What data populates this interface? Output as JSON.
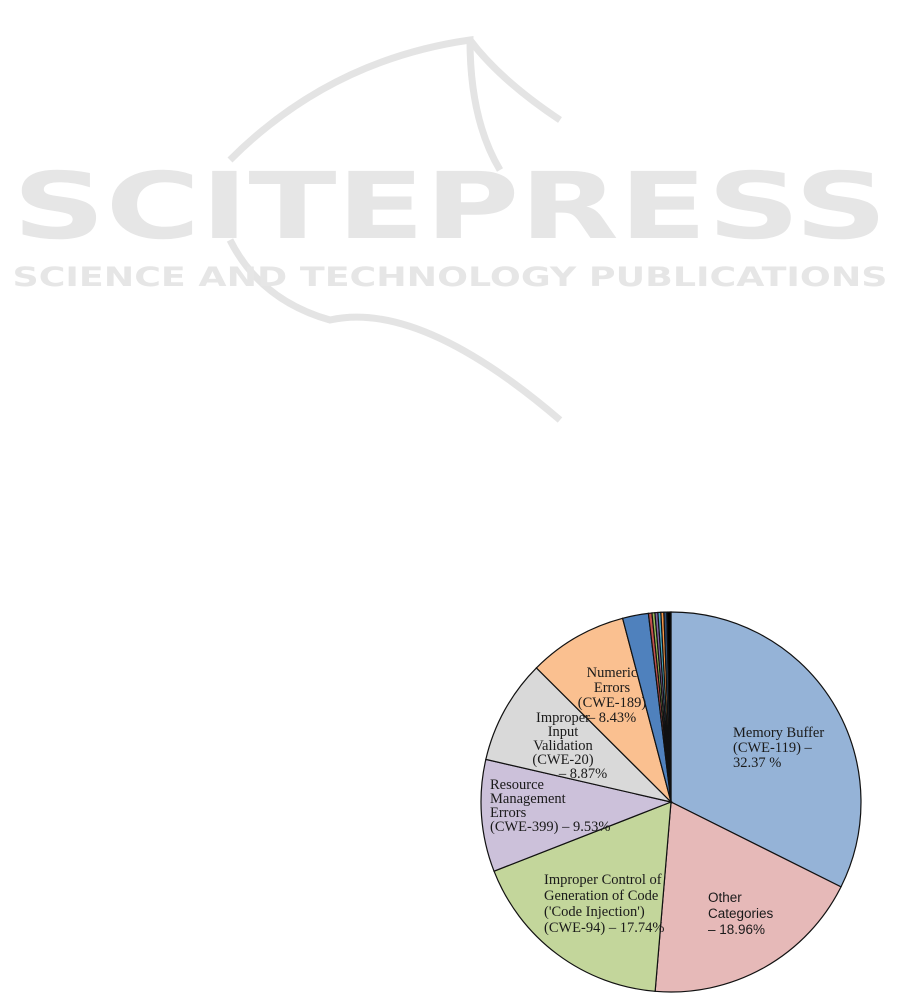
{
  "watermark": {
    "title": "SCITEPRESS",
    "subtitle": "SCIENCE AND TECHNOLOGY PUBLICATIONS"
  },
  "chart_data": {
    "type": "pie",
    "start": "12 o'clock",
    "direction": "clockwise",
    "slices": [
      {
        "label_lines": [
          "Memory Buffer",
          "(CWE-119) –",
          "32.37 %"
        ],
        "value": 32.37,
        "color": "#95b3d7"
      },
      {
        "label_lines": [
          "Other",
          "Categories",
          "– 18.96%"
        ],
        "value": 18.96,
        "color": "#e6b9b8"
      },
      {
        "label_lines": [
          "Improper Control of",
          "Generation of Code",
          "('Code Injection')",
          "(CWE-94) – 17.74%"
        ],
        "value": 17.74,
        "color": "#c3d69b"
      },
      {
        "label_lines": [
          "Resource",
          "Management",
          "Errors",
          "(CWE-399) – 9.53%"
        ],
        "value": 9.53,
        "color": "#ccc1da"
      },
      {
        "label_lines": [
          "Improper",
          "Input",
          "Validation",
          "(CWE-20)",
          "– 8.87%"
        ],
        "value": 8.87,
        "color": "#d9d9d9"
      },
      {
        "label_lines": [
          "Numeric",
          "Errors",
          "(CWE-189)",
          "– 8.43%"
        ],
        "value": 8.43,
        "color": "#fac090"
      },
      {
        "value": 2.2,
        "color": "#4f81bd"
      },
      {
        "value": 0.3,
        "color": "#c0504d"
      },
      {
        "value": 0.25,
        "color": "#9bbb59"
      },
      {
        "value": 0.25,
        "color": "#8064a2"
      },
      {
        "value": 0.25,
        "color": "#4bacc6"
      },
      {
        "value": 0.25,
        "color": "#f79646"
      },
      {
        "value": 0.25,
        "color": "#2c4d75"
      },
      {
        "value": 0.35,
        "color": "#000000"
      }
    ]
  }
}
